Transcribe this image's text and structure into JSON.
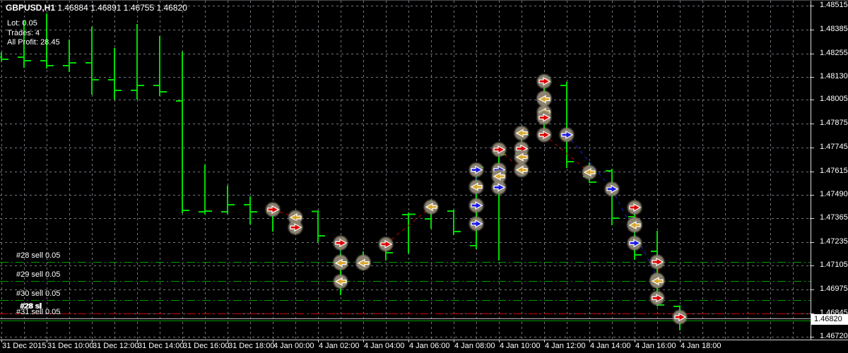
{
  "header": {
    "symbol_period": "GBPUSD,H1",
    "ohlc": "1.46884 1.46891 1.46755 1.46820"
  },
  "ea_status": {
    "lot": "Lot: 0.05",
    "trades": "Trades: 4",
    "profit": "All Profit: 28.45"
  },
  "orders": [
    {
      "label": "#28 sell 0.05",
      "price": 1.47126,
      "style": "dashdot"
    },
    {
      "label": "#29 sell 0.05",
      "price": 1.47022,
      "style": "dashdot"
    },
    {
      "label": "#30 sell 0.05",
      "price": 1.4692,
      "style": "dashdot"
    },
    {
      "label": "#31 sell 0.05",
      "price": 1.4681,
      "style": "solid"
    }
  ],
  "stop_loss": {
    "label": "#28 sl",
    "price": 1.46845
  },
  "bid": {
    "label": "1.46820",
    "price": 1.4682
  },
  "colors": {
    "background": "#000000",
    "grid": "#737780",
    "bars": "#00db00",
    "order_line": "#00a000",
    "stop_line": "#d40000",
    "bid_line": "#bdbdbd",
    "sell_arrow": "#e00000",
    "buy_arrow": "#1c1ce8",
    "exit_arrow": "#d9a92c",
    "marker_halo": "#8c8371",
    "trade_line_sell": "#bb0000",
    "trade_line_buy": "#2222cc",
    "axis_text": "#ffffff",
    "separator": "#d8d8d8"
  },
  "chart_data": {
    "type": "ohlc-bar",
    "title": "GBPUSD,H1",
    "symbol": "GBPUSD",
    "period": "H1",
    "y_axis": {
      "labels": [
        "1.48515",
        "1.48385",
        "1.48255",
        "1.48130",
        "1.48005",
        "1.47875",
        "1.47745",
        "1.47615",
        "1.47490",
        "1.47365",
        "1.47235",
        "1.47105",
        "1.46975",
        "1.46845",
        "1.46720"
      ],
      "top_price": 1.48542,
      "bottom_price": 1.467
    },
    "x_axis": {
      "labels": [
        {
          "bar": 0,
          "text": "31 Dec 2015"
        },
        {
          "bar": 2,
          "text": "31 Dec 10:00"
        },
        {
          "bar": 4,
          "text": "31 Dec 12:00"
        },
        {
          "bar": 6,
          "text": "31 Dec 14:00"
        },
        {
          "bar": 8,
          "text": "31 Dec 16:00"
        },
        {
          "bar": 10,
          "text": "31 Dec 18:00"
        },
        {
          "bar": 12,
          "text": "4 Jan 00:00"
        },
        {
          "bar": 14,
          "text": "4 Jan 02:00"
        },
        {
          "bar": 16,
          "text": "4 Jan 04:00"
        },
        {
          "bar": 18,
          "text": "4 Jan 06:00"
        },
        {
          "bar": 20,
          "text": "4 Jan 08:00"
        },
        {
          "bar": 22,
          "text": "4 Jan 10:00"
        },
        {
          "bar": 24,
          "text": "4 Jan 12:00"
        },
        {
          "bar": 26,
          "text": "4 Jan 14:00"
        },
        {
          "bar": 28,
          "text": "4 Jan 16:00"
        },
        {
          "bar": 30,
          "text": "4 Jan 18:00"
        }
      ]
    },
    "bars": [
      [
        1.48236,
        1.48263,
        1.48213,
        1.48224
      ],
      [
        1.48236,
        1.48435,
        1.48178,
        1.48217
      ],
      [
        1.48217,
        1.48473,
        1.48175,
        1.4819
      ],
      [
        1.4819,
        1.48332,
        1.48155,
        1.48205
      ],
      [
        1.48205,
        1.484,
        1.48033,
        1.48113
      ],
      [
        1.48113,
        1.48286,
        1.48006,
        1.48056
      ],
      [
        1.48056,
        1.48416,
        1.48006,
        1.48083
      ],
      [
        1.48083,
        1.48351,
        1.48025,
        1.48048
      ],
      [
        1.47998,
        1.48266,
        1.4739,
        1.47405
      ],
      [
        1.47398,
        1.47654,
        1.47385,
        1.47402
      ],
      [
        1.47398,
        1.4754,
        1.47387,
        1.47436
      ],
      [
        1.47436,
        1.47482,
        1.47329,
        1.47398
      ],
      [
        1.47398,
        1.47444,
        1.47291,
        1.4741
      ],
      [
        1.4736,
        1.47375,
        1.47279,
        1.47313
      ],
      [
        1.474,
        1.47406,
        1.47233,
        1.47268
      ],
      [
        1.47229,
        1.47256,
        1.46946,
        1.47126
      ],
      [
        1.47126,
        1.47183,
        1.4708,
        1.47122
      ],
      [
        1.47222,
        1.47248,
        1.47134,
        1.47176
      ],
      [
        1.47382,
        1.47394,
        1.47172,
        1.47384
      ],
      [
        1.4736,
        1.47463,
        1.47306,
        1.47424
      ],
      [
        1.47402,
        1.47409,
        1.47271,
        1.4729
      ],
      [
        1.47214,
        1.4765,
        1.47195,
        1.47639
      ],
      [
        1.476,
        1.47746,
        1.47134,
        1.47708
      ],
      [
        1.47715,
        1.47838,
        1.47601,
        1.47815
      ],
      [
        1.47815,
        1.4814,
        1.47792,
        1.48102
      ],
      [
        1.48083,
        1.48102,
        1.47635,
        1.4767
      ],
      [
        1.47589,
        1.47666,
        1.47555,
        1.47559
      ],
      [
        1.4762,
        1.47631,
        1.47325,
        1.47363
      ],
      [
        1.47371,
        1.47421,
        1.47138,
        1.47164
      ],
      [
        1.47183,
        1.47295,
        1.46885,
        1.46893
      ],
      [
        1.46884,
        1.46891,
        1.46755,
        1.4682
      ]
    ],
    "markers": [
      {
        "bar": 12,
        "price": 1.4741,
        "kind": "sell"
      },
      {
        "bar": 13,
        "price": 1.47367,
        "kind": "exit"
      },
      {
        "bar": 13,
        "price": 1.47313,
        "kind": "sell"
      },
      {
        "bar": 15,
        "price": 1.47229,
        "kind": "sell"
      },
      {
        "bar": 15,
        "price": 1.47126,
        "kind": "sell"
      },
      {
        "bar": 15,
        "price": 1.4712,
        "kind": "exit"
      },
      {
        "bar": 15,
        "price": 1.4702,
        "kind": "exit"
      },
      {
        "bar": 16,
        "price": 1.47126,
        "kind": "sell"
      },
      {
        "bar": 16,
        "price": 1.4712,
        "kind": "exit"
      },
      {
        "bar": 17,
        "price": 1.47222,
        "kind": "sell"
      },
      {
        "bar": 19,
        "price": 1.47424,
        "kind": "exit"
      },
      {
        "bar": 21,
        "price": 1.47625,
        "kind": "buy"
      },
      {
        "bar": 21,
        "price": 1.47533,
        "kind": "exit"
      },
      {
        "bar": 21,
        "price": 1.47432,
        "kind": "buy"
      },
      {
        "bar": 21,
        "price": 1.47333,
        "kind": "buy"
      },
      {
        "bar": 22,
        "price": 1.47735,
        "kind": "sell"
      },
      {
        "bar": 22,
        "price": 1.47625,
        "kind": "buy"
      },
      {
        "bar": 22,
        "price": 1.4759,
        "kind": "exit"
      },
      {
        "bar": 22,
        "price": 1.4753,
        "kind": "buy"
      },
      {
        "bar": 23,
        "price": 1.47824,
        "kind": "exit"
      },
      {
        "bar": 23,
        "price": 1.4774,
        "kind": "sell"
      },
      {
        "bar": 23,
        "price": 1.47694,
        "kind": "exit"
      },
      {
        "bar": 23,
        "price": 1.47625,
        "kind": "exit"
      },
      {
        "bar": 24,
        "price": 1.48105,
        "kind": "sell"
      },
      {
        "bar": 24,
        "price": 1.48015,
        "kind": "sell"
      },
      {
        "bar": 24,
        "price": 1.48008,
        "kind": "exit"
      },
      {
        "bar": 24,
        "price": 1.47938,
        "kind": "exit"
      },
      {
        "bar": 24,
        "price": 1.47908,
        "kind": "sell"
      },
      {
        "bar": 24,
        "price": 1.47815,
        "kind": "sell"
      },
      {
        "bar": 25,
        "price": 1.47815,
        "kind": "buy"
      },
      {
        "bar": 26,
        "price": 1.47612,
        "kind": "exit"
      },
      {
        "bar": 27,
        "price": 1.47521,
        "kind": "buy"
      },
      {
        "bar": 28,
        "price": 1.47421,
        "kind": "sell"
      },
      {
        "bar": 28,
        "price": 1.4733,
        "kind": "sell"
      },
      {
        "bar": 28,
        "price": 1.47325,
        "kind": "exit"
      },
      {
        "bar": 28,
        "price": 1.47228,
        "kind": "buy"
      },
      {
        "bar": 29,
        "price": 1.47126,
        "kind": "sell"
      },
      {
        "bar": 29,
        "price": 1.47028,
        "kind": "sell"
      },
      {
        "bar": 29,
        "price": 1.47022,
        "kind": "exit"
      },
      {
        "bar": 29,
        "price": 1.4693,
        "kind": "sell"
      },
      {
        "bar": 30,
        "price": 1.46827,
        "kind": "sell"
      }
    ],
    "trade_lines": [
      {
        "b1": 12,
        "p1": 1.4741,
        "b2": 13,
        "p2": 1.47367,
        "side": "sell"
      },
      {
        "b1": 17,
        "p1": 1.47222,
        "b2": 19,
        "p2": 1.47424,
        "side": "sell"
      },
      {
        "b1": 22,
        "p1": 1.47735,
        "b2": 23,
        "p2": 1.47625,
        "side": "sell"
      },
      {
        "b1": 24,
        "p1": 1.47815,
        "b2": 26,
        "p2": 1.47612,
        "side": "sell"
      },
      {
        "b1": 24,
        "p1": 1.48105,
        "b2": 24.12,
        "p2": 1.48008,
        "side": "sell"
      },
      {
        "b1": 28,
        "p1": 1.47421,
        "b2": 28.12,
        "p2": 1.47325,
        "side": "sell"
      },
      {
        "b1": 29,
        "p1": 1.47126,
        "b2": 29.12,
        "p2": 1.47022,
        "side": "sell"
      },
      {
        "b1": 15,
        "p1": 1.47229,
        "b2": 15.06,
        "p2": 1.4702,
        "side": "buy"
      },
      {
        "b1": 21,
        "p1": 1.47625,
        "b2": 21.06,
        "p2": 1.47333,
        "side": "buy"
      },
      {
        "b1": 25,
        "p1": 1.47815,
        "b2": 27,
        "p2": 1.47521,
        "side": "buy"
      },
      {
        "b1": 27,
        "p1": 1.47521,
        "b2": 29.1,
        "p2": 1.47022,
        "side": "buy"
      }
    ]
  }
}
